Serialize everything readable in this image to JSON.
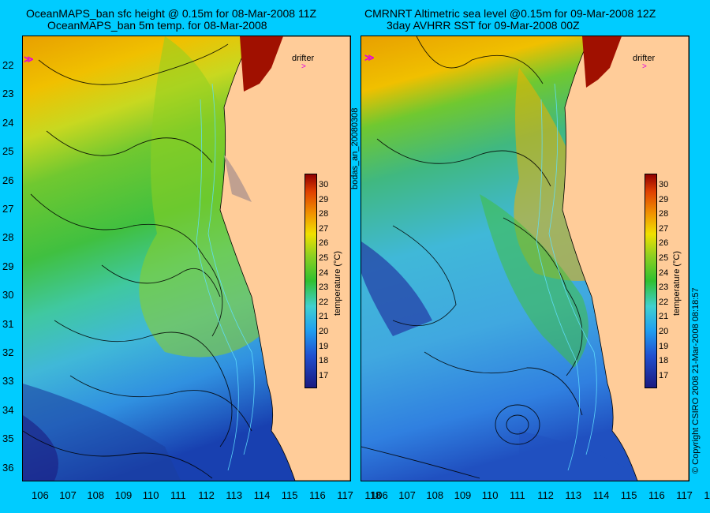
{
  "left_panel": {
    "title_line1": "OceanMAPS_ban sfc height @ 0.15m for 08-Mar-2008 11Z",
    "title_line2": "OceanMAPS_ban 5m temp. for 08-Mar-2008"
  },
  "right_panel": {
    "title_line1": "CMRNRT Altimetric sea level  @0.15m  for 09-Mar-2008 12Z",
    "title_line2": "3day AVHRR SST for 09-Mar-2008 00Z"
  },
  "drifter_label": "drifter",
  "colorbar": {
    "label": "temperature (°C)",
    "ticks": [
      "30",
      "29",
      "28",
      "27",
      "26",
      "25",
      "24",
      "23",
      "22",
      "21",
      "20",
      "19",
      "18",
      "17"
    ]
  },
  "lat_ticks": [
    "22",
    "23",
    "24",
    "25",
    "26",
    "27",
    "28",
    "29",
    "30",
    "31",
    "32",
    "33",
    "34",
    "35",
    "36"
  ],
  "lon_ticks": [
    "106",
    "107",
    "108",
    "109",
    "110",
    "111",
    "112",
    "113",
    "114",
    "115",
    "116",
    "117",
    "118"
  ],
  "side_label": "bodas_an_20080308",
  "copyright": "© Copyright CSIRO 2008    21-Mar-2008 08:18:57",
  "colors": {
    "background": "#00ccff",
    "land": "#ffcc99"
  }
}
